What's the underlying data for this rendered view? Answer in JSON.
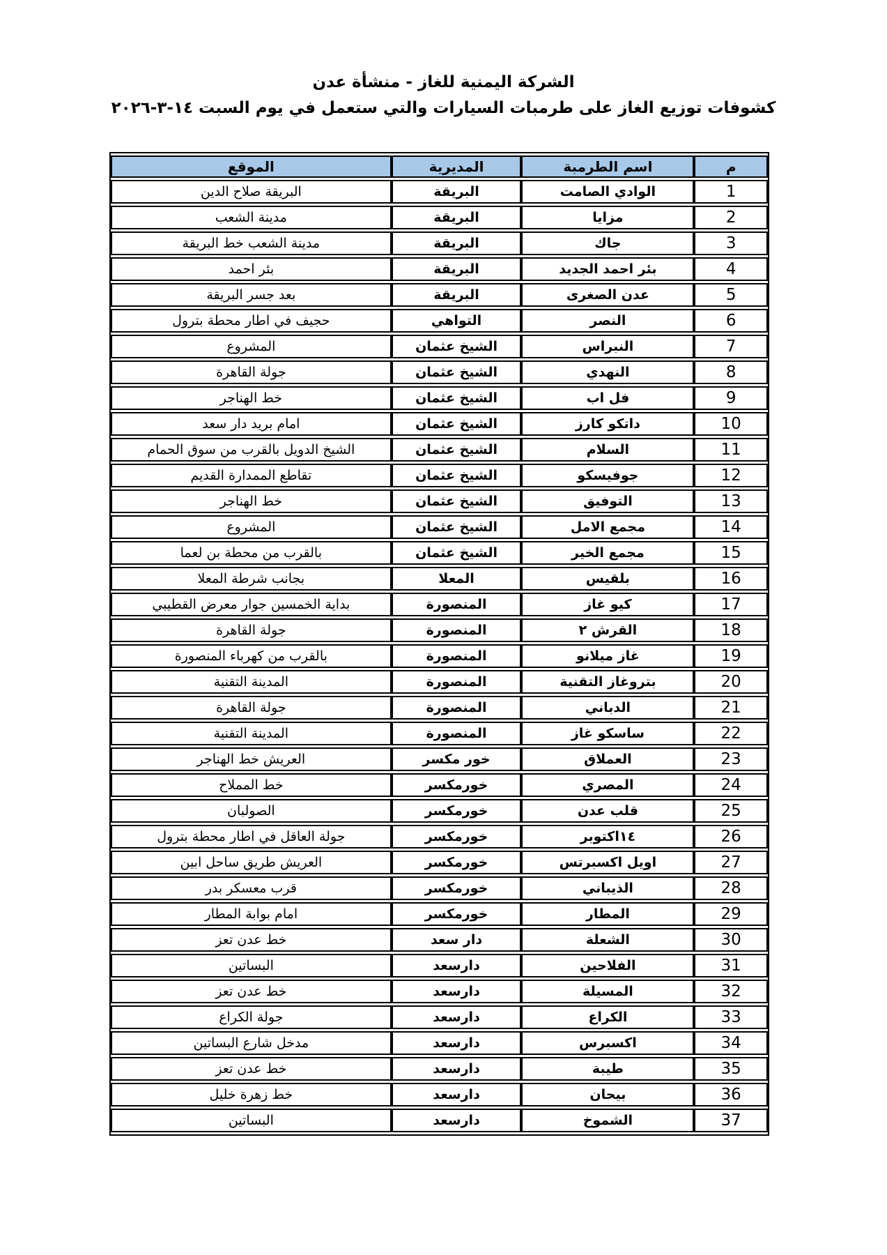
{
  "page": {
    "title_line1": "الشركة اليمنية للغاز - منشأة عدن",
    "title_line2": "كشوفات توزيع الغاز على طرمبات السيارات والتي ستعمل في يوم السبت ١٤-٣-٢٠٢٦"
  },
  "colors": {
    "page_bg": "#ffffff",
    "header_bg": "#a8c8e8",
    "border": "#000000"
  },
  "table": {
    "columns": [
      {
        "key": "num",
        "label": "م"
      },
      {
        "key": "name",
        "label": "اسم الطرمبة"
      },
      {
        "key": "district",
        "label": "المديرية"
      },
      {
        "key": "location",
        "label": "الموقع"
      }
    ],
    "rows": [
      {
        "num": "1",
        "name": "الوادي الصامت",
        "district": "البريقة",
        "location": "البريقة صلاح الدين"
      },
      {
        "num": "2",
        "name": "مزايا",
        "district": "البريقة",
        "location": "مدينة الشعب"
      },
      {
        "num": "3",
        "name": "جاك",
        "district": "البريقة",
        "location": "مدينة الشعب خط البريقة"
      },
      {
        "num": "4",
        "name": "بئر احمد الجديد",
        "district": "البريقة",
        "location": "بئر احمد"
      },
      {
        "num": "5",
        "name": "عدن الصغرى",
        "district": "البريقة",
        "location": "بعد جسر البريقة"
      },
      {
        "num": "6",
        "name": "النصر",
        "district": "التواهي",
        "location": "حجيف في اطار محطة بترول"
      },
      {
        "num": "7",
        "name": "النبراس",
        "district": "الشيخ عثمان",
        "location": "المشروع"
      },
      {
        "num": "8",
        "name": "النهدي",
        "district": "الشيخ عثمان",
        "location": "جولة القاهرة"
      },
      {
        "num": "9",
        "name": "فل اب",
        "district": "الشيخ عثمان",
        "location": "خط الهناجر"
      },
      {
        "num": "10",
        "name": "داتكو كارز",
        "district": "الشيخ عثمان",
        "location": "امام بريد دار سعد"
      },
      {
        "num": "11",
        "name": "السلام",
        "district": "الشيخ عثمان",
        "location": "الشيخ الدويل بالقرب من سوق الحمام"
      },
      {
        "num": "12",
        "name": "جوفيسكو",
        "district": "الشيخ عثمان",
        "location": "تقاطع الممدارة القديم"
      },
      {
        "num": "13",
        "name": "التوفيق",
        "district": "الشيخ عثمان",
        "location": "خط الهناجر"
      },
      {
        "num": "14",
        "name": "مجمع الامل",
        "district": "الشيخ عثمان",
        "location": "المشروع"
      },
      {
        "num": "15",
        "name": "مجمع الخير",
        "district": "الشيخ عثمان",
        "location": "بالقرب من محطة بن لعما"
      },
      {
        "num": "16",
        "name": "بلقيس",
        "district": "المعلا",
        "location": "بجانب شرطة المعلا"
      },
      {
        "num": "17",
        "name": "كيو غاز",
        "district": "المنصورة",
        "location": "بداية الخمسين جوار معرض القطيبي"
      },
      {
        "num": "18",
        "name": "القرش ٢",
        "district": "المنصورة",
        "location": "جولة القاهرة"
      },
      {
        "num": "19",
        "name": "غاز ميلانو",
        "district": "المنصورة",
        "location": "بالقرب من كهرباء المنصورة"
      },
      {
        "num": "20",
        "name": "بتروغاز التقنية",
        "district": "المنصورة",
        "location": "المدينة التقنية"
      },
      {
        "num": "21",
        "name": "الدباني",
        "district": "المنصورة",
        "location": "جولة القاهرة"
      },
      {
        "num": "22",
        "name": "ساسكو غاز",
        "district": "المنصورة",
        "location": "المدينة التقنية"
      },
      {
        "num": "23",
        "name": "العملاق",
        "district": "خور مكسر",
        "location": "العريش خط الهناجر"
      },
      {
        "num": "24",
        "name": "المصري",
        "district": "خورمكسر",
        "location": "خط المملاح"
      },
      {
        "num": "25",
        "name": "قلب عدن",
        "district": "خورمكسر",
        "location": "الصولبان"
      },
      {
        "num": "26",
        "name": "١٤اكتوبر",
        "district": "خورمكسر",
        "location": "جولة العاقل في اطار محطة بترول"
      },
      {
        "num": "27",
        "name": "اويل اكسبرتس",
        "district": "خورمكسر",
        "location": "العريش طريق ساحل ابين"
      },
      {
        "num": "28",
        "name": "الذيباني",
        "district": "خورمكسر",
        "location": "قرب معسكر بدر"
      },
      {
        "num": "29",
        "name": "المطار",
        "district": "خورمكسر",
        "location": "امام بوابة المطار"
      },
      {
        "num": "30",
        "name": "الشعلة",
        "district": "دار سعد",
        "location": "خط عدن تعز"
      },
      {
        "num": "31",
        "name": "الفلاحين",
        "district": "دارسعد",
        "location": "البساتين"
      },
      {
        "num": "32",
        "name": "المسيلة",
        "district": "دارسعد",
        "location": "خط عدن تعز"
      },
      {
        "num": "33",
        "name": "الكراع",
        "district": "دارسعد",
        "location": "جولة الكراع"
      },
      {
        "num": "34",
        "name": "اكسبرس",
        "district": "دارسعد",
        "location": "مدخل شارع البساتين"
      },
      {
        "num": "35",
        "name": "طيبة",
        "district": "دارسعد",
        "location": "خط عدن تعز"
      },
      {
        "num": "36",
        "name": "بيحان",
        "district": "دارسعد",
        "location": "خط زهرة خليل"
      },
      {
        "num": "37",
        "name": "الشموخ",
        "district": "دارسعد",
        "location": "البساتين"
      }
    ]
  }
}
